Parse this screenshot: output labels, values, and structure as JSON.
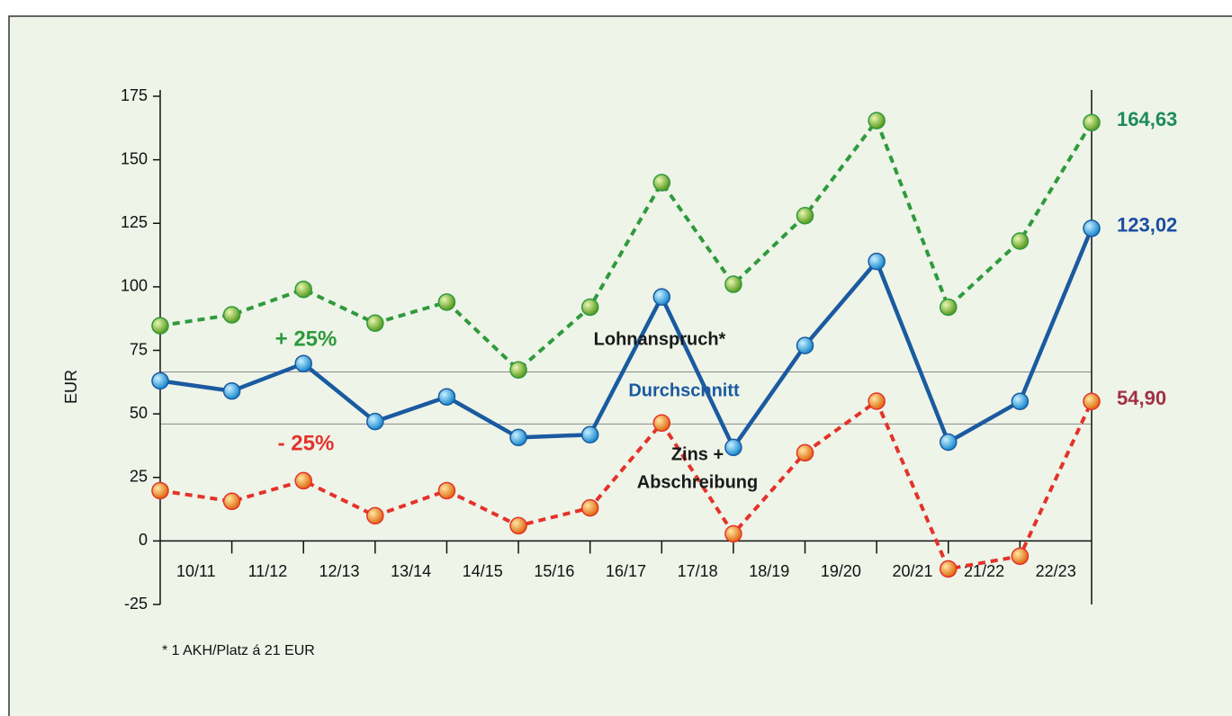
{
  "chart_data": {
    "type": "line",
    "y_label": "EUR",
    "footnote": "* 1 AKH/Platz á 21 EUR",
    "x": [
      0,
      1,
      2,
      3,
      4,
      5,
      6,
      7,
      8,
      9,
      10,
      11,
      12,
      13
    ],
    "xlim": [
      0,
      13
    ],
    "xticks": [
      {
        "value": 0.5,
        "label": "10/11"
      },
      {
        "value": 1.5,
        "label": "11/12"
      },
      {
        "value": 2.5,
        "label": "12/13"
      },
      {
        "value": 3.5,
        "label": "13/14"
      },
      {
        "value": 4.5,
        "label": "14/15"
      },
      {
        "value": 5.5,
        "label": "15/16"
      },
      {
        "value": 6.5,
        "label": "16/17"
      },
      {
        "value": 7.5,
        "label": "17/18"
      },
      {
        "value": 8.5,
        "label": "18/19"
      },
      {
        "value": 9.5,
        "label": "19/20"
      },
      {
        "value": 10.5,
        "label": "20/21"
      },
      {
        "value": 11.5,
        "label": "21/22"
      },
      {
        "value": 12.5,
        "label": "22/23"
      }
    ],
    "ylim": [
      -25,
      175
    ],
    "yticks": [
      -25,
      0,
      25,
      50,
      75,
      100,
      125,
      150,
      175
    ],
    "reference_lines": [
      66.5,
      46
    ],
    "series": [
      {
        "name": "Lohnanspruch*",
        "color": "#2e9a3c",
        "dash": true,
        "marker_color": "#8cc43c",
        "label_color": "#1d8a5e",
        "end_label": "164,63",
        "values": [
          84.7,
          89,
          99,
          85.7,
          94,
          67.3,
          92,
          141,
          101,
          128,
          165.4,
          92,
          118,
          164.63
        ]
      },
      {
        "name": "Durchschnitt",
        "color": "#1a5aa0",
        "dash": false,
        "marker_color": "#3cb4ea",
        "label_color": "#1c4ea2",
        "end_label": "123,02",
        "values": [
          63,
          59,
          69.8,
          47,
          56.7,
          40.7,
          41.8,
          96,
          36.8,
          76.9,
          110,
          38.9,
          54.9,
          123.02
        ]
      },
      {
        "name": "Zins + Abschreibung",
        "color": "#e4322a",
        "dash": true,
        "marker_color": "#f3a21e",
        "label_color": "#a23044",
        "end_label": "54,90",
        "values": [
          19.8,
          15.6,
          23.7,
          9.9,
          19.8,
          6,
          13,
          46.4,
          2.8,
          34.7,
          55,
          -11,
          -6,
          54.9
        ]
      }
    ],
    "annotations": [
      {
        "text": "+ 25%",
        "color": "#2e9a3c"
      },
      {
        "text": "- 25%",
        "color": "#e4322a"
      },
      {
        "text": "Lohnanspruch*",
        "color": "#1a1a1a"
      },
      {
        "text": "Durchschnitt",
        "color": "#1a5aa0"
      },
      {
        "text": "Zins +",
        "color": "#1a1a1a"
      },
      {
        "text": "Abschreibung",
        "color": "#1a1a1a"
      }
    ]
  }
}
